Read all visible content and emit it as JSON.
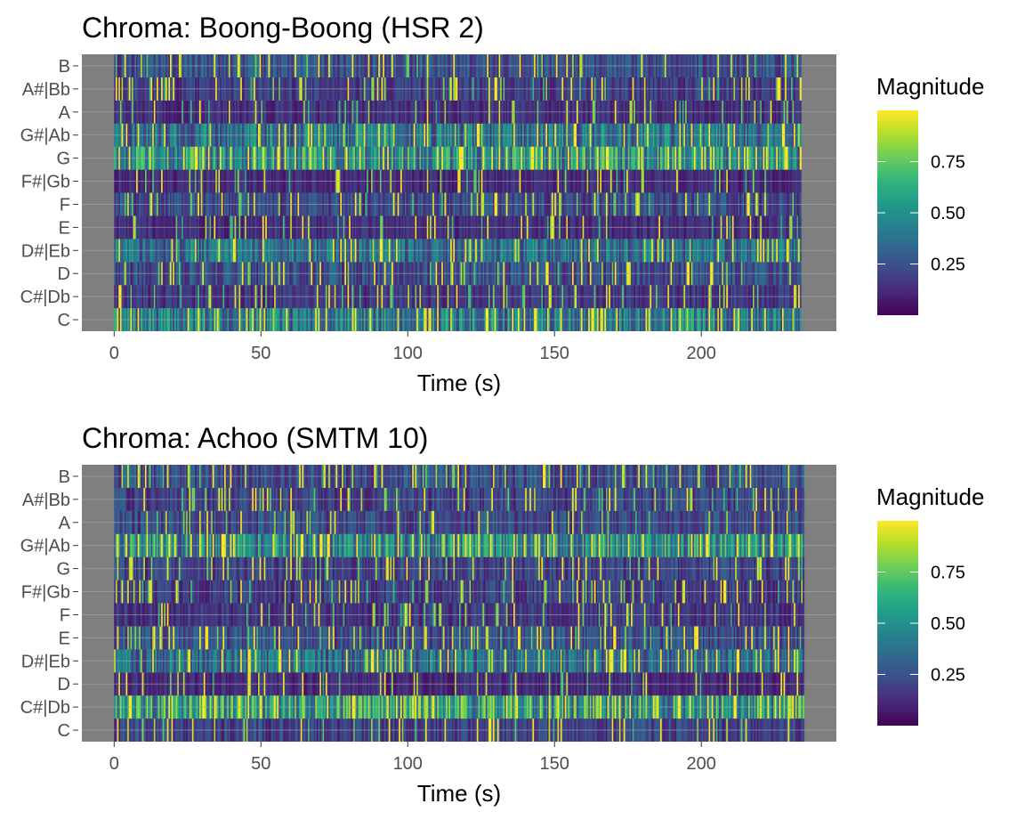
{
  "chart_data": [
    {
      "type": "heatmap",
      "title": "Chroma: Boong-Boong (HSR 2)",
      "xlabel": "Time (s)",
      "ylabel": "",
      "y_categories": [
        "C",
        "C#|Db",
        "D",
        "D#|Eb",
        "E",
        "F",
        "F#|Gb",
        "G",
        "G#|Ab",
        "A",
        "A#|Bb",
        "B"
      ],
      "x_ticks": [
        0,
        50,
        100,
        150,
        200
      ],
      "xlim": [
        -11,
        246
      ],
      "time_range": [
        0,
        234
      ],
      "frame_step_s": 0.5,
      "background_color": "#7f7f7f",
      "gridlines": true,
      "colormap": "viridis",
      "legend": {
        "title": "Magnitude",
        "ticks": [
          0.25,
          0.5,
          0.75
        ],
        "tick_labels": [
          "0.25",
          "0.50",
          "0.75"
        ],
        "range": [
          0.0,
          1.0
        ],
        "position": "right"
      },
      "pitch_mean_magnitude": {
        "C": 0.42,
        "C#|Db": 0.16,
        "D": 0.24,
        "D#|Eb": 0.36,
        "E": 0.13,
        "F": 0.22,
        "F#|Gb": 0.12,
        "G": 0.5,
        "G#|Ab": 0.38,
        "A": 0.14,
        "A#|Bb": 0.18,
        "B": 0.24
      },
      "seed": 7
    },
    {
      "type": "heatmap",
      "title": "Chroma: Achoo (SMTM 10)",
      "xlabel": "Time (s)",
      "ylabel": "",
      "y_categories": [
        "C",
        "C#|Db",
        "D",
        "D#|Eb",
        "E",
        "F",
        "F#|Gb",
        "G",
        "G#|Ab",
        "A",
        "A#|Bb",
        "B"
      ],
      "x_ticks": [
        0,
        50,
        100,
        150,
        200
      ],
      "xlim": [
        -11,
        246
      ],
      "time_range": [
        0,
        235
      ],
      "frame_step_s": 0.5,
      "background_color": "#7f7f7f",
      "gridlines": true,
      "colormap": "viridis",
      "legend": {
        "title": "Magnitude",
        "ticks": [
          0.25,
          0.5,
          0.75
        ],
        "tick_labels": [
          "0.25",
          "0.50",
          "0.75"
        ],
        "range": [
          0.0,
          1.0
        ],
        "position": "right"
      },
      "pitch_mean_magnitude": {
        "C": 0.2,
        "C#|Db": 0.55,
        "D": 0.12,
        "D#|Eb": 0.36,
        "E": 0.24,
        "F": 0.16,
        "F#|Gb": 0.18,
        "G": 0.2,
        "G#|Ab": 0.48,
        "A": 0.22,
        "A#|Bb": 0.2,
        "B": 0.24
      },
      "seed": 19
    }
  ]
}
